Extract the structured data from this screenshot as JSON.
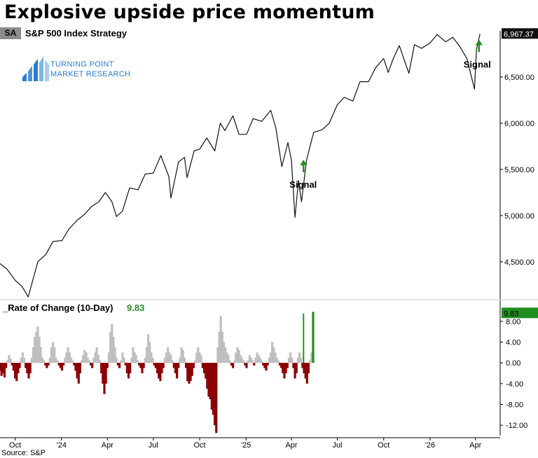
{
  "title": "Explosive upside price momentum",
  "symbol": "SA",
  "series_name": "S&P 500 Index  Strategy",
  "logo": {
    "line1": "TURNING POINT",
    "line2": "MARKET RESEARCH",
    "color": "#2a7bc9"
  },
  "source": "Source: S&P",
  "colors": {
    "price_line": "#111111",
    "roc_positive": "#bfbfbf",
    "roc_negative": "#8b0000",
    "signal": "#1f8f1f",
    "last_value_box": "#1f8f1f"
  },
  "chart_data": [
    {
      "type": "line",
      "series": [
        {
          "name": "S&P 500 Index",
          "last_value": 6967.37,
          "last_value_label": "6,967.37"
        }
      ],
      "x": [
        "2023-09-01",
        "2023-09-15",
        "2023-10-01",
        "2023-10-15",
        "2023-10-27",
        "2023-11-15",
        "2023-12-01",
        "2023-12-15",
        "2024-01-02",
        "2024-01-15",
        "2024-02-01",
        "2024-02-15",
        "2024-03-01",
        "2024-03-15",
        "2024-03-28",
        "2024-04-10",
        "2024-04-19",
        "2024-05-01",
        "2024-05-15",
        "2024-06-01",
        "2024-06-15",
        "2024-07-01",
        "2024-07-16",
        "2024-08-01",
        "2024-08-05",
        "2024-08-20",
        "2024-09-01",
        "2024-09-06",
        "2024-09-20",
        "2024-10-01",
        "2024-10-15",
        "2024-10-31",
        "2024-11-11",
        "2024-11-20",
        "2024-12-06",
        "2024-12-18",
        "2025-01-02",
        "2025-01-15",
        "2025-02-01",
        "2025-02-19",
        "2025-03-01",
        "2025-03-13",
        "2025-03-25",
        "2025-04-01",
        "2025-04-08",
        "2025-04-15",
        "2025-04-21",
        "2025-05-01",
        "2025-05-15",
        "2025-06-01",
        "2025-06-15",
        "2025-07-01",
        "2025-07-15",
        "2025-08-01",
        "2025-08-15",
        "2025-09-01",
        "2025-09-15",
        "2025-10-01",
        "2025-10-10",
        "2025-10-20",
        "2025-11-01",
        "2025-11-20",
        "2025-12-01",
        "2025-12-15",
        "2026-01-01",
        "2026-01-15",
        "2026-02-01",
        "2026-02-15",
        "2026-03-01",
        "2026-03-15",
        "2026-03-30",
        "2026-04-03",
        "2026-04-10"
      ],
      "y": [
        4480,
        4420,
        4300,
        4230,
        4120,
        4500,
        4580,
        4720,
        4730,
        4850,
        4950,
        5010,
        5100,
        5150,
        5250,
        5150,
        4990,
        5050,
        5300,
        5280,
        5450,
        5460,
        5650,
        5420,
        5190,
        5580,
        5630,
        5410,
        5700,
        5720,
        5840,
        5700,
        6000,
        5920,
        6080,
        5880,
        5880,
        6050,
        6020,
        6140,
        5950,
        5530,
        5790,
        5600,
        4980,
        5380,
        5150,
        5600,
        5900,
        5930,
        6000,
        6200,
        6280,
        6240,
        6450,
        6450,
        6600,
        6700,
        6550,
        6700,
        6840,
        6540,
        6850,
        6810,
        6870,
        6960,
        6880,
        6930,
        6830,
        6700,
        6370,
        6800,
        6967
      ],
      "ylim": [
        4150,
        7000
      ],
      "yticks": [
        "4,500.00",
        "5,000.00",
        "5,500.00",
        "6,000.00",
        "6,500.00"
      ],
      "yticks_values": [
        4500,
        5000,
        5500,
        6000,
        6500
      ],
      "annotations": [
        {
          "label": "Signal",
          "x": "2025-04-25",
          "y": 5560
        },
        {
          "label": "Signal",
          "x": "2026-04-08",
          "y": 6860
        }
      ]
    },
    {
      "type": "bar",
      "title": "_Rate of Change (10-Day)",
      "last_value": 9.83,
      "last_value_label": "9.83",
      "ylim": [
        -14,
        10
      ],
      "yticks": [
        "8.00",
        "4.00",
        "0.00",
        "-4.00",
        "-8.00",
        "-12.00"
      ],
      "yticks_values": [
        8,
        4,
        0,
        -4,
        -8,
        -12
      ],
      "x_start": "2023-09-01",
      "x_step_days": 3,
      "values": [
        -1.5,
        -2.5,
        -2,
        -2.8,
        -1,
        0.5,
        1.5,
        0.8,
        -0.5,
        -1.5,
        -3,
        -3.5,
        -2,
        -1,
        1,
        2,
        1,
        -1,
        -2,
        -3,
        -2,
        1,
        3,
        5,
        6,
        7,
        5,
        3,
        1,
        0.5,
        -0.5,
        -1,
        -0.5,
        1,
        3,
        4,
        3,
        1,
        0.5,
        -0.5,
        -1,
        -1.5,
        -0.5,
        1,
        2,
        3,
        2,
        1,
        0.5,
        -0.5,
        -1.5,
        -3,
        -4,
        -2,
        0.5,
        1.5,
        2.5,
        2,
        1,
        0.5,
        -0.5,
        -1,
        1,
        2,
        3,
        1.5,
        0.5,
        -2,
        -4,
        -6,
        -4,
        -1,
        2,
        6,
        7.5,
        5,
        3,
        1,
        -0.5,
        -1,
        0.5,
        2,
        1,
        -0.5,
        -2,
        -3,
        -2,
        1,
        3,
        2,
        1.5,
        0.5,
        -0.5,
        -1,
        -2,
        -1,
        1,
        3,
        5.5,
        4,
        2,
        1,
        -0.5,
        -1,
        -2,
        -3,
        -3.5,
        -2,
        -1,
        1,
        2,
        3,
        2,
        1.5,
        0.5,
        -1,
        -2,
        -3,
        -1,
        1,
        3,
        2.5,
        1,
        -1,
        -3.5,
        -4,
        -3.5,
        -2.5,
        -1,
        0.5,
        2,
        3,
        2,
        1.5,
        -1,
        -2,
        -3,
        -5,
        -6.5,
        -7,
        -9,
        -10,
        -12,
        -13.5,
        3,
        6,
        9,
        6,
        4,
        3,
        2,
        1.5,
        0.5,
        -0.5,
        -1,
        0.5,
        2,
        3,
        2.5,
        1.5,
        1,
        0.5,
        -0.5,
        -1,
        0.5,
        1.5,
        1,
        0.5,
        -0.5,
        1,
        2,
        1.5,
        1,
        0.5,
        -0.5,
        -1,
        -1.5,
        -0.5,
        1,
        2,
        4,
        3,
        2,
        1,
        0.5,
        -0.5,
        -1,
        -2,
        -3,
        -2,
        -1,
        1,
        2,
        1,
        -1,
        -3,
        -2,
        1,
        2,
        1,
        -1,
        -2,
        -3,
        -4,
        -2,
        0.5,
        2,
        9.83
      ],
      "annotations": [
        {
          "label": "Signal",
          "x": "2025-04-25",
          "value": 9.5
        }
      ]
    }
  ],
  "x_axis": {
    "ticks": [
      "Oct",
      "'24",
      "Apr",
      "Jul",
      "Oct",
      "'25",
      "Apr",
      "Jul",
      "Oct",
      "'26",
      "Apr"
    ],
    "tick_dates": [
      "2023-10-01",
      "2024-01-01",
      "2024-04-01",
      "2024-07-01",
      "2024-10-01",
      "2025-01-01",
      "2025-04-01",
      "2025-07-01",
      "2025-10-01",
      "2026-01-01",
      "2026-04-01"
    ],
    "range": [
      "2023-09-01",
      "2026-05-20"
    ]
  }
}
